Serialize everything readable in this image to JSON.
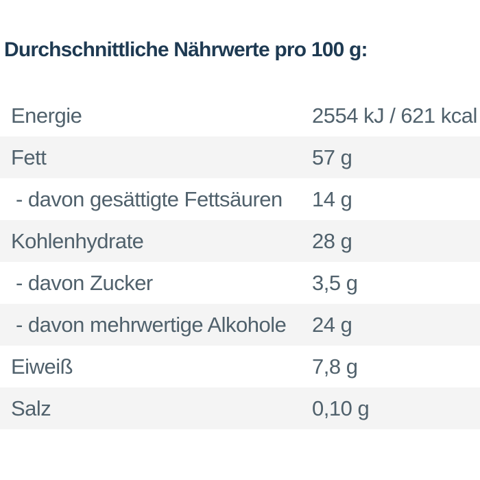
{
  "title": "Durchschnittliche Nährwerte pro 100 g:",
  "colors": {
    "title_text": "#1e3a52",
    "row_text": "#50616c",
    "stripe_background": "#f4f4f4",
    "page_background": "#ffffff"
  },
  "table": {
    "rows": [
      {
        "label": "Energie",
        "value": "2554 kJ / 621 kcal"
      },
      {
        "label": "Fett",
        "value": "57 g"
      },
      {
        "label": "- davon gesättigte Fettsäuren",
        "value": "14 g"
      },
      {
        "label": "Kohlenhydrate",
        "value": "28 g"
      },
      {
        "label": "- davon Zucker",
        "value": "3,5 g"
      },
      {
        "label": "- davon mehrwertige Alkohole",
        "value": "24 g"
      },
      {
        "label": "Eiweiß",
        "value": "7,8 g"
      },
      {
        "label": "Salz",
        "value": "0,10 g"
      }
    ]
  }
}
